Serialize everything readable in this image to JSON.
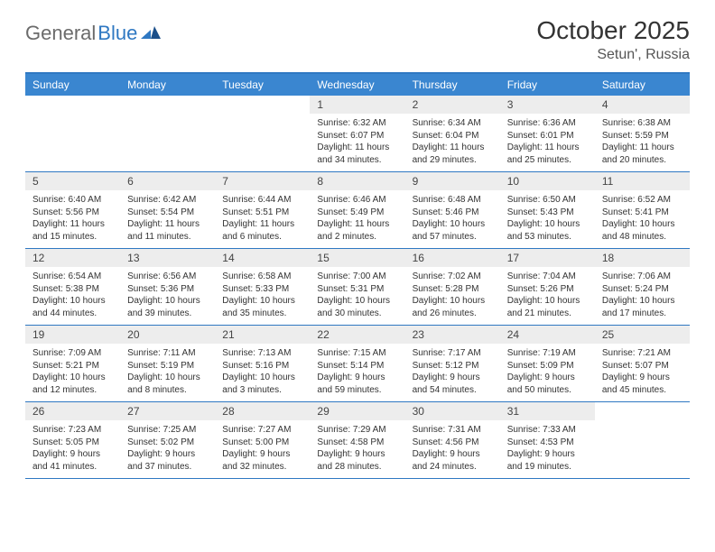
{
  "brand": {
    "part1": "General",
    "part2": "Blue"
  },
  "title": "October 2025",
  "location": "Setun', Russia",
  "colors": {
    "header_bg": "#3a86d0",
    "header_border": "#2f78c2",
    "daynum_bg": "#ededed",
    "text": "#333333",
    "logo_gray": "#6b6b6b",
    "logo_blue": "#2f78c2"
  },
  "typography": {
    "title_fontsize": 28,
    "location_fontsize": 16,
    "header_fontsize": 12,
    "daynum_fontsize": 12,
    "body_fontsize": 10
  },
  "weekdays": [
    "Sunday",
    "Monday",
    "Tuesday",
    "Wednesday",
    "Thursday",
    "Friday",
    "Saturday"
  ],
  "weeks": [
    [
      {
        "day": "",
        "sunrise": "",
        "sunset": "",
        "daylight": ""
      },
      {
        "day": "",
        "sunrise": "",
        "sunset": "",
        "daylight": ""
      },
      {
        "day": "",
        "sunrise": "",
        "sunset": "",
        "daylight": ""
      },
      {
        "day": "1",
        "sunrise": "Sunrise: 6:32 AM",
        "sunset": "Sunset: 6:07 PM",
        "daylight": "Daylight: 11 hours and 34 minutes."
      },
      {
        "day": "2",
        "sunrise": "Sunrise: 6:34 AM",
        "sunset": "Sunset: 6:04 PM",
        "daylight": "Daylight: 11 hours and 29 minutes."
      },
      {
        "day": "3",
        "sunrise": "Sunrise: 6:36 AM",
        "sunset": "Sunset: 6:01 PM",
        "daylight": "Daylight: 11 hours and 25 minutes."
      },
      {
        "day": "4",
        "sunrise": "Sunrise: 6:38 AM",
        "sunset": "Sunset: 5:59 PM",
        "daylight": "Daylight: 11 hours and 20 minutes."
      }
    ],
    [
      {
        "day": "5",
        "sunrise": "Sunrise: 6:40 AM",
        "sunset": "Sunset: 5:56 PM",
        "daylight": "Daylight: 11 hours and 15 minutes."
      },
      {
        "day": "6",
        "sunrise": "Sunrise: 6:42 AM",
        "sunset": "Sunset: 5:54 PM",
        "daylight": "Daylight: 11 hours and 11 minutes."
      },
      {
        "day": "7",
        "sunrise": "Sunrise: 6:44 AM",
        "sunset": "Sunset: 5:51 PM",
        "daylight": "Daylight: 11 hours and 6 minutes."
      },
      {
        "day": "8",
        "sunrise": "Sunrise: 6:46 AM",
        "sunset": "Sunset: 5:49 PM",
        "daylight": "Daylight: 11 hours and 2 minutes."
      },
      {
        "day": "9",
        "sunrise": "Sunrise: 6:48 AM",
        "sunset": "Sunset: 5:46 PM",
        "daylight": "Daylight: 10 hours and 57 minutes."
      },
      {
        "day": "10",
        "sunrise": "Sunrise: 6:50 AM",
        "sunset": "Sunset: 5:43 PM",
        "daylight": "Daylight: 10 hours and 53 minutes."
      },
      {
        "day": "11",
        "sunrise": "Sunrise: 6:52 AM",
        "sunset": "Sunset: 5:41 PM",
        "daylight": "Daylight: 10 hours and 48 minutes."
      }
    ],
    [
      {
        "day": "12",
        "sunrise": "Sunrise: 6:54 AM",
        "sunset": "Sunset: 5:38 PM",
        "daylight": "Daylight: 10 hours and 44 minutes."
      },
      {
        "day": "13",
        "sunrise": "Sunrise: 6:56 AM",
        "sunset": "Sunset: 5:36 PM",
        "daylight": "Daylight: 10 hours and 39 minutes."
      },
      {
        "day": "14",
        "sunrise": "Sunrise: 6:58 AM",
        "sunset": "Sunset: 5:33 PM",
        "daylight": "Daylight: 10 hours and 35 minutes."
      },
      {
        "day": "15",
        "sunrise": "Sunrise: 7:00 AM",
        "sunset": "Sunset: 5:31 PM",
        "daylight": "Daylight: 10 hours and 30 minutes."
      },
      {
        "day": "16",
        "sunrise": "Sunrise: 7:02 AM",
        "sunset": "Sunset: 5:28 PM",
        "daylight": "Daylight: 10 hours and 26 minutes."
      },
      {
        "day": "17",
        "sunrise": "Sunrise: 7:04 AM",
        "sunset": "Sunset: 5:26 PM",
        "daylight": "Daylight: 10 hours and 21 minutes."
      },
      {
        "day": "18",
        "sunrise": "Sunrise: 7:06 AM",
        "sunset": "Sunset: 5:24 PM",
        "daylight": "Daylight: 10 hours and 17 minutes."
      }
    ],
    [
      {
        "day": "19",
        "sunrise": "Sunrise: 7:09 AM",
        "sunset": "Sunset: 5:21 PM",
        "daylight": "Daylight: 10 hours and 12 minutes."
      },
      {
        "day": "20",
        "sunrise": "Sunrise: 7:11 AM",
        "sunset": "Sunset: 5:19 PM",
        "daylight": "Daylight: 10 hours and 8 minutes."
      },
      {
        "day": "21",
        "sunrise": "Sunrise: 7:13 AM",
        "sunset": "Sunset: 5:16 PM",
        "daylight": "Daylight: 10 hours and 3 minutes."
      },
      {
        "day": "22",
        "sunrise": "Sunrise: 7:15 AM",
        "sunset": "Sunset: 5:14 PM",
        "daylight": "Daylight: 9 hours and 59 minutes."
      },
      {
        "day": "23",
        "sunrise": "Sunrise: 7:17 AM",
        "sunset": "Sunset: 5:12 PM",
        "daylight": "Daylight: 9 hours and 54 minutes."
      },
      {
        "day": "24",
        "sunrise": "Sunrise: 7:19 AM",
        "sunset": "Sunset: 5:09 PM",
        "daylight": "Daylight: 9 hours and 50 minutes."
      },
      {
        "day": "25",
        "sunrise": "Sunrise: 7:21 AM",
        "sunset": "Sunset: 5:07 PM",
        "daylight": "Daylight: 9 hours and 45 minutes."
      }
    ],
    [
      {
        "day": "26",
        "sunrise": "Sunrise: 7:23 AM",
        "sunset": "Sunset: 5:05 PM",
        "daylight": "Daylight: 9 hours and 41 minutes."
      },
      {
        "day": "27",
        "sunrise": "Sunrise: 7:25 AM",
        "sunset": "Sunset: 5:02 PM",
        "daylight": "Daylight: 9 hours and 37 minutes."
      },
      {
        "day": "28",
        "sunrise": "Sunrise: 7:27 AM",
        "sunset": "Sunset: 5:00 PM",
        "daylight": "Daylight: 9 hours and 32 minutes."
      },
      {
        "day": "29",
        "sunrise": "Sunrise: 7:29 AM",
        "sunset": "Sunset: 4:58 PM",
        "daylight": "Daylight: 9 hours and 28 minutes."
      },
      {
        "day": "30",
        "sunrise": "Sunrise: 7:31 AM",
        "sunset": "Sunset: 4:56 PM",
        "daylight": "Daylight: 9 hours and 24 minutes."
      },
      {
        "day": "31",
        "sunrise": "Sunrise: 7:33 AM",
        "sunset": "Sunset: 4:53 PM",
        "daylight": "Daylight: 9 hours and 19 minutes."
      },
      {
        "day": "",
        "sunrise": "",
        "sunset": "",
        "daylight": ""
      }
    ]
  ]
}
